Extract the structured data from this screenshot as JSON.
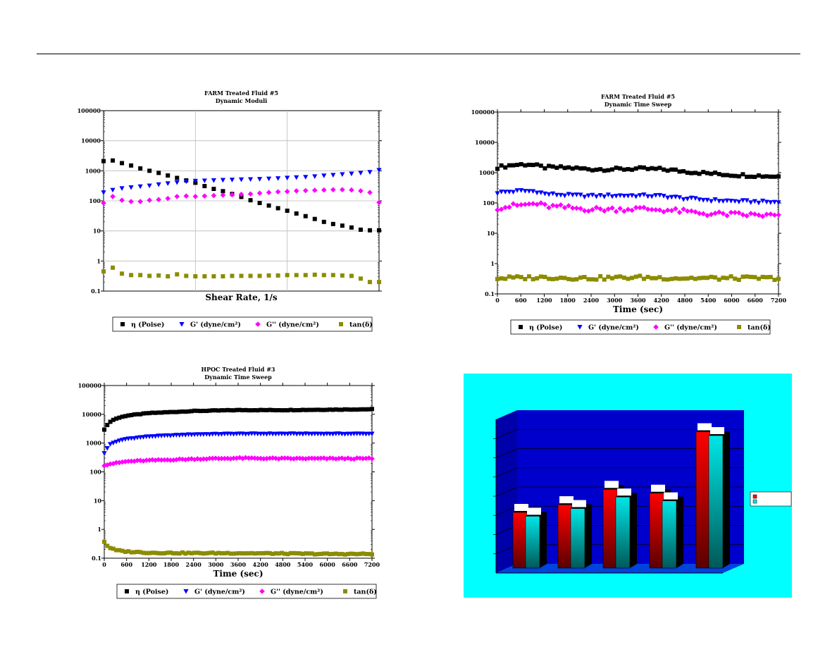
{
  "chart_data": [
    {
      "type": "scatter",
      "title": "FARM Treated Fluid #5",
      "subtitle": "Dynamic Moduli",
      "xlabel": "Shear Rate, 1/s",
      "ylabel": "",
      "yscale": "log",
      "ylim": [
        0.1,
        100000
      ],
      "yticks": [
        "100000",
        "10000",
        "1000",
        "100",
        "10",
        "1",
        "0.1"
      ],
      "xticks": [],
      "grid": true,
      "legend_position": "bottom",
      "x": [
        1,
        2,
        3,
        4,
        5,
        6,
        7,
        8,
        9,
        10,
        11,
        12,
        13,
        14,
        15,
        16,
        17,
        18,
        19,
        20,
        21,
        22,
        23,
        24,
        25,
        26,
        27,
        28,
        29,
        30,
        31
      ],
      "xlim": [
        1,
        31
      ],
      "series": [
        {
          "name": "η (Poise)",
          "marker": "square",
          "color": "#000000",
          "values": [
            2100,
            2200,
            1800,
            1500,
            1200,
            1000,
            850,
            700,
            580,
            480,
            400,
            310,
            250,
            210,
            170,
            135,
            105,
            85,
            70,
            57,
            47,
            38,
            31,
            25,
            20,
            17,
            15,
            13,
            11,
            10.5,
            10.5
          ]
        },
        {
          "name": "G' (dyne/cm²)",
          "marker": "triangle-down",
          "color": "#0000ff",
          "values": [
            190,
            230,
            260,
            280,
            300,
            320,
            350,
            380,
            410,
            440,
            460,
            470,
            480,
            490,
            500,
            510,
            520,
            530,
            545,
            560,
            580,
            600,
            620,
            650,
            690,
            720,
            760,
            800,
            850,
            900,
            1050
          ]
        },
        {
          "name": "G'' (dyne/cm²)",
          "marker": "diamond",
          "color": "#ff00ff",
          "values": [
            85,
            140,
            105,
            95,
            95,
            105,
            110,
            120,
            140,
            145,
            140,
            145,
            150,
            155,
            160,
            165,
            170,
            180,
            190,
            200,
            205,
            215,
            220,
            225,
            230,
            235,
            235,
            230,
            215,
            190,
            88
          ]
        },
        {
          "name": "tan(δ)",
          "marker": "square",
          "color": "#8c8c00",
          "values": [
            0.45,
            0.6,
            0.38,
            0.34,
            0.34,
            0.32,
            0.33,
            0.31,
            0.36,
            0.32,
            0.31,
            0.31,
            0.31,
            0.31,
            0.32,
            0.32,
            0.32,
            0.32,
            0.33,
            0.33,
            0.34,
            0.34,
            0.34,
            0.35,
            0.34,
            0.34,
            0.33,
            0.32,
            0.26,
            0.2,
            0.2
          ]
        }
      ]
    },
    {
      "type": "scatter",
      "title": "FARM Treated Fluid #5",
      "subtitle": "Dynamic Time Sweep",
      "xlabel": "Time (sec)",
      "ylabel": "",
      "yscale": "log",
      "ylim": [
        0.1,
        100000
      ],
      "yticks": [
        "100000",
        "10000",
        "1000",
        "100",
        "10",
        "1",
        "0.1"
      ],
      "xlim": [
        0,
        7200
      ],
      "xticks": [
        "0",
        "600",
        "1200",
        "1800",
        "2400",
        "3000",
        "3600",
        "4200",
        "4800",
        "5400",
        "6000",
        "6600",
        "7200"
      ],
      "grid": false,
      "legend_position": "bottom",
      "series": [
        {
          "name": "η (Poise)",
          "marker": "square",
          "color": "#000000",
          "anchors": [
            [
              0,
              1500
            ],
            [
              400,
              1800
            ],
            [
              800,
              1900
            ],
            [
              1200,
              1500
            ],
            [
              1800,
              1450
            ],
            [
              2400,
              1300
            ],
            [
              3000,
              1300
            ],
            [
              3600,
              1350
            ],
            [
              4200,
              1300
            ],
            [
              4800,
              1100
            ],
            [
              5400,
              950
            ],
            [
              6000,
              850
            ],
            [
              6600,
              800
            ],
            [
              7200,
              750
            ]
          ],
          "jitter": 0.05
        },
        {
          "name": "G' (dyne/cm²)",
          "marker": "triangle-down",
          "color": "#0000ff",
          "anchors": [
            [
              0,
              220
            ],
            [
              600,
              250
            ],
            [
              1000,
              240
            ],
            [
              1200,
              200
            ],
            [
              1800,
              180
            ],
            [
              2400,
              170
            ],
            [
              3000,
              175
            ],
            [
              3600,
              175
            ],
            [
              4200,
              170
            ],
            [
              4800,
              140
            ],
            [
              5400,
              125
            ],
            [
              6000,
              115
            ],
            [
              6600,
              110
            ],
            [
              7200,
              105
            ]
          ],
          "jitter": 0.04
        },
        {
          "name": "G'' (dyne/cm²)",
          "marker": "diamond",
          "color": "#ff00ff",
          "anchors": [
            [
              0,
              70
            ],
            [
              600,
              85
            ],
            [
              1000,
              95
            ],
            [
              1200,
              80
            ],
            [
              1800,
              70
            ],
            [
              2400,
              62
            ],
            [
              3000,
              62
            ],
            [
              3600,
              65
            ],
            [
              4200,
              60
            ],
            [
              4800,
              52
            ],
            [
              5400,
              44
            ],
            [
              6000,
              42
            ],
            [
              6600,
              40
            ],
            [
              7200,
              38
            ]
          ],
          "jitter": 0.08
        },
        {
          "name": "tan(δ)",
          "marker": "square",
          "color": "#8c8c00",
          "anchors": [
            [
              0,
              0.33
            ],
            [
              1200,
              0.35
            ],
            [
              2400,
              0.33
            ],
            [
              3600,
              0.35
            ],
            [
              4800,
              0.33
            ],
            [
              6000,
              0.33
            ],
            [
              7200,
              0.33
            ]
          ],
          "jitter": 0.06
        }
      ]
    },
    {
      "type": "scatter",
      "title": "HPOC Treated Fluid #3",
      "subtitle": "Dynamic Time Sweep",
      "xlabel": "Time (sec)",
      "ylabel": "",
      "yscale": "log",
      "ylim": [
        0.1,
        100000
      ],
      "yticks": [
        "100000",
        "10000",
        "1000",
        "100",
        "10",
        "1",
        "0.1"
      ],
      "xlim": [
        0,
        7200
      ],
      "xticks": [
        "0",
        "600",
        "1200",
        "1800",
        "2400",
        "3000",
        "3600",
        "4200",
        "4800",
        "5400",
        "6000",
        "6600",
        "7200"
      ],
      "grid": false,
      "legend_position": "bottom",
      "series": [
        {
          "name": "η (Poise)",
          "marker": "square",
          "color": "#000000",
          "anchors": [
            [
              0,
              3000
            ],
            [
              150,
              5500
            ],
            [
              300,
              7000
            ],
            [
              600,
              9000
            ],
            [
              1200,
              11000
            ],
            [
              2400,
              13000
            ],
            [
              3600,
              14000
            ],
            [
              4800,
              14000
            ],
            [
              6000,
              14500
            ],
            [
              7200,
              15000
            ]
          ],
          "jitter": 0.01
        },
        {
          "name": "G' (dyne/cm²)",
          "marker": "triangle-down",
          "color": "#0000ff",
          "anchors": [
            [
              0,
              450
            ],
            [
              150,
              900
            ],
            [
              300,
              1100
            ],
            [
              600,
              1400
            ],
            [
              1200,
              1700
            ],
            [
              2400,
              2000
            ],
            [
              3600,
              2100
            ],
            [
              4800,
              2100
            ],
            [
              6000,
              2100
            ],
            [
              7200,
              2100
            ]
          ],
          "jitter": 0.01
        },
        {
          "name": "G'' (dyne/cm²)",
          "marker": "diamond",
          "color": "#ff00ff",
          "anchors": [
            [
              0,
              170
            ],
            [
              150,
              190
            ],
            [
              300,
              200
            ],
            [
              600,
              230
            ],
            [
              1200,
              250
            ],
            [
              2400,
              280
            ],
            [
              3600,
              300
            ],
            [
              4800,
              290
            ],
            [
              6000,
              290
            ],
            [
              7200,
              290
            ]
          ],
          "jitter": 0.02
        },
        {
          "name": "tan(δ)",
          "marker": "square",
          "color": "#8c8c00",
          "anchors": [
            [
              0,
              0.38
            ],
            [
              100,
              0.25
            ],
            [
              300,
              0.19
            ],
            [
              600,
              0.17
            ],
            [
              1200,
              0.155
            ],
            [
              2400,
              0.15
            ],
            [
              3600,
              0.15
            ],
            [
              4800,
              0.145
            ],
            [
              6000,
              0.14
            ],
            [
              7200,
              0.14
            ]
          ],
          "jitter": 0.02
        }
      ]
    },
    {
      "type": "bar",
      "style": "3d",
      "title": "",
      "xlabel": "",
      "ylabel": "",
      "background": "#00ffff",
      "wall_color": "#0000cc",
      "legend_position": "right",
      "categories": [
        "",
        "",
        "",
        "",
        ""
      ],
      "ylim": [
        0,
        8
      ],
      "series": [
        {
          "name": "",
          "color": "#ff0000",
          "values": [
            2.9,
            3.3,
            4.1,
            3.9,
            7.1
          ]
        },
        {
          "name": "",
          "color": "#00e6e6",
          "values": [
            2.7,
            3.1,
            3.7,
            3.5,
            6.9
          ]
        }
      ]
    }
  ]
}
